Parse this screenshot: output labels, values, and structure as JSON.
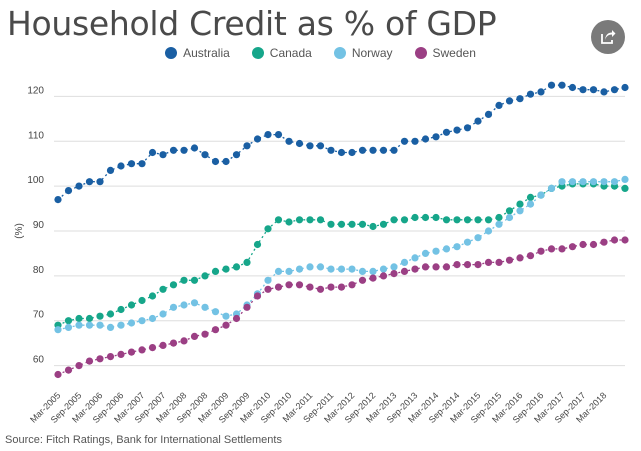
{
  "colors": {
    "Australia": "#1a5fa3",
    "Canada": "#16a68a",
    "Norway": "#73c2e4",
    "Sweden": "#9b3f84",
    "share_button": "#7a7a7a"
  },
  "chart_data": {
    "type": "line",
    "title": "Household Credit as % of GDP",
    "xlabel": "",
    "ylabel": "(%)",
    "ylim": [
      55,
      125
    ],
    "yticks": [
      60,
      70,
      80,
      90,
      100,
      110,
      120
    ],
    "grid": true,
    "legend": "top-center",
    "x_tick_labels": [
      "Mar-2005",
      "Sep-2005",
      "Mar-2006",
      "Sep-2006",
      "Mar-2007",
      "Sep-2007",
      "Mar-2008",
      "Sep-2008",
      "Mar-2009",
      "Sep-2009",
      "Mar-2010",
      "Sep-2010",
      "Mar-2011",
      "Sep-2011",
      "Mar-2012",
      "Sep-2012",
      "Mar-2013",
      "Sep-2013",
      "Mar-2014",
      "Sep-2014",
      "Mar-2015",
      "Sep-2015",
      "Mar-2016",
      "Sep-2016",
      "Mar-2017",
      "Sep-2017",
      "Mar-2018"
    ],
    "points_per_tick": 2,
    "series": [
      {
        "name": "Australia",
        "values": [
          97,
          99,
          100,
          101,
          101,
          103.5,
          104.5,
          105,
          105,
          107.5,
          107,
          108,
          108,
          108.5,
          107,
          105.5,
          105.5,
          107,
          109,
          110.5,
          111.5,
          111.5,
          110,
          109.5,
          109,
          109,
          108,
          107.5,
          107.5,
          108,
          108,
          108,
          108,
          110,
          110,
          110.5,
          111,
          112,
          112.5,
          113,
          114.5,
          116,
          118,
          119,
          119.5,
          120.5,
          121,
          122.5,
          122.5,
          122,
          121.5,
          121.5,
          121,
          121.5,
          122
        ]
      },
      {
        "name": "Canada",
        "values": [
          69,
          70,
          70.5,
          70.5,
          71,
          71.5,
          72.5,
          73.5,
          74.5,
          75.5,
          77,
          78,
          79,
          79,
          80,
          81,
          81.5,
          82,
          83,
          87,
          90.5,
          92.5,
          92,
          92.5,
          92.5,
          92.5,
          91.5,
          91.5,
          91.5,
          91.5,
          91,
          91.5,
          92.5,
          92.5,
          93,
          93,
          93,
          92.5,
          92.5,
          92.5,
          92.5,
          92.5,
          93,
          94.5,
          96,
          97.5,
          98,
          99.5,
          100,
          100.5,
          100.5,
          100.5,
          100,
          100,
          99.5
        ]
      },
      {
        "name": "Norway",
        "values": [
          68,
          68.5,
          69,
          69,
          69,
          68.5,
          69,
          69.5,
          70,
          70.5,
          71.5,
          73,
          73.5,
          74,
          73,
          72,
          71,
          71.5,
          73.5,
          76,
          79,
          81,
          81,
          81.5,
          82,
          82,
          81.5,
          81.5,
          81.5,
          81,
          81,
          81.5,
          82,
          83,
          84,
          85,
          85.5,
          86,
          86.5,
          87.5,
          88.5,
          90,
          91.5,
          93,
          94.5,
          96,
          98,
          99.5,
          101,
          101,
          101,
          101,
          101,
          101,
          101.5
        ]
      },
      {
        "name": "Sweden",
        "values": [
          58,
          59,
          60,
          61,
          61.5,
          62,
          62.5,
          63,
          63.5,
          64,
          64.5,
          65,
          65.5,
          66.5,
          67,
          68,
          69,
          70.5,
          73,
          75.5,
          77,
          77.5,
          78,
          78,
          77.5,
          77,
          77.5,
          77.5,
          78,
          79,
          79.5,
          80,
          80.5,
          81,
          81.5,
          82,
          82,
          82,
          82.5,
          82.5,
          82.5,
          83,
          83,
          83.5,
          84,
          84.5,
          85.5,
          86,
          86,
          86.5,
          87,
          87,
          87.5,
          88,
          88
        ]
      }
    ]
  },
  "share_icon": "share-icon",
  "source": "Source: Fitch Ratings, Bank for International Settlements"
}
